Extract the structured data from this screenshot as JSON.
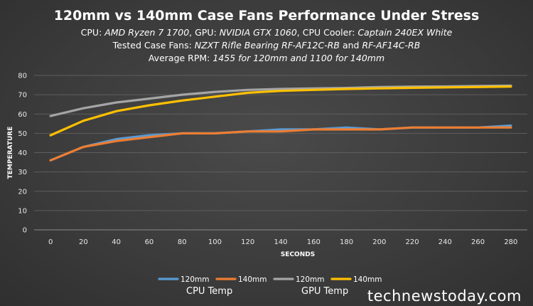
{
  "colors": {
    "cpu_120": "#5b9bd5",
    "cpu_140": "#ed7d31",
    "gpu_120": "#a5a5a5",
    "gpu_140": "#ffc000"
  },
  "header": {
    "title": "120mm vs 140mm Case Fans Performance Under Stress",
    "line1": {
      "cpu_label": "CPU: ",
      "cpu_value": "AMD Ryzen 7 1700",
      "gpu_label": ", GPU: ",
      "gpu_value": "NVIDIA GTX 1060",
      "cooler_label": ", CPU Cooler: ",
      "cooler_value": "Captain 240EX White"
    },
    "line2": {
      "label": "Tested Case Fans: ",
      "fan1": "NZXT Rifle Bearing RF-AF12C-RB",
      "sep": " and ",
      "fan2": "RF-AF14C-RB"
    },
    "line3": {
      "label": "Average RPM: ",
      "value": "1455 for 120mm and 1100 for 140mm"
    }
  },
  "chart_data": {
    "type": "line",
    "xlabel": "SECONDS",
    "ylabel": "TEMPERATURE",
    "x": [
      0,
      20,
      40,
      60,
      80,
      100,
      120,
      140,
      160,
      180,
      200,
      220,
      240,
      260,
      280
    ],
    "ylim": [
      0,
      80
    ],
    "yticks": [
      0,
      10,
      20,
      30,
      40,
      50,
      60,
      70,
      80
    ],
    "grid": true,
    "legend_position": "bottom",
    "series": [
      {
        "name": "120mm",
        "group": "CPU Temp",
        "color_key": "cpu_120",
        "values": [
          36,
          43,
          47,
          49,
          50,
          50,
          51,
          52,
          52,
          53,
          52,
          53,
          53,
          53,
          54
        ]
      },
      {
        "name": "140mm",
        "group": "CPU Temp",
        "color_key": "cpu_140",
        "values": [
          36,
          43,
          46,
          48,
          50,
          50,
          51,
          51,
          52,
          52,
          52,
          53,
          53,
          53,
          53
        ]
      },
      {
        "name": "120mm",
        "group": "GPU Temp",
        "color_key": "gpu_120",
        "values": [
          59,
          63,
          66,
          68,
          70,
          71.5,
          72.5,
          73,
          73.3,
          73.5,
          74,
          74.2,
          74.3,
          74.5,
          74.7
        ]
      },
      {
        "name": "140mm",
        "group": "GPU Temp",
        "color_key": "gpu_140",
        "values": [
          49,
          56.5,
          61.5,
          64.5,
          67,
          69,
          71,
          72,
          72.5,
          73,
          73.3,
          73.6,
          73.8,
          74,
          74.2
        ]
      }
    ],
    "legend_groups": [
      "CPU Temp",
      "GPU Temp"
    ]
  },
  "watermark": "technewstoday.com"
}
